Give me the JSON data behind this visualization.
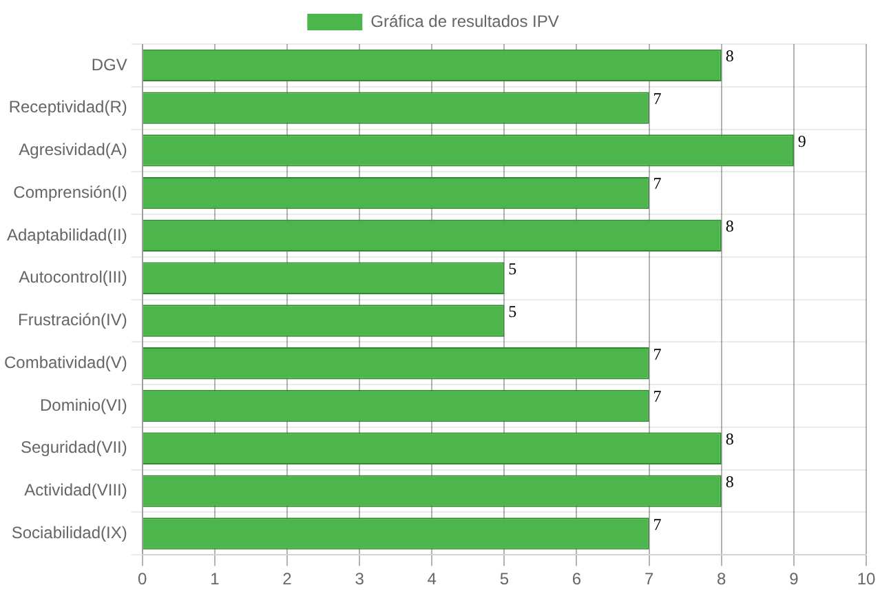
{
  "chart_data": {
    "type": "bar",
    "orientation": "horizontal",
    "categories": [
      "DGV",
      "Receptividad(R)",
      "Agresividad(A)",
      "Comprensión(I)",
      "Adaptabilidad(II)",
      "Autocontrol(III)",
      "Frustración(IV)",
      "Combatividad(V)",
      "Dominio(VI)",
      "Seguridad(VII)",
      "Actividad(VIII)",
      "Sociabilidad(IX)"
    ],
    "series": [
      {
        "name": "Gráfica de resultados IPV",
        "color": "#4cb54c",
        "values": [
          8,
          7,
          9,
          7,
          8,
          5,
          5,
          7,
          7,
          8,
          8,
          7
        ]
      }
    ],
    "xlim": [
      0,
      10
    ],
    "xticks": [
      0,
      1,
      2,
      3,
      4,
      5,
      6,
      7,
      8,
      9,
      10
    ],
    "grid": true,
    "legend": "top",
    "data_labels": true
  }
}
